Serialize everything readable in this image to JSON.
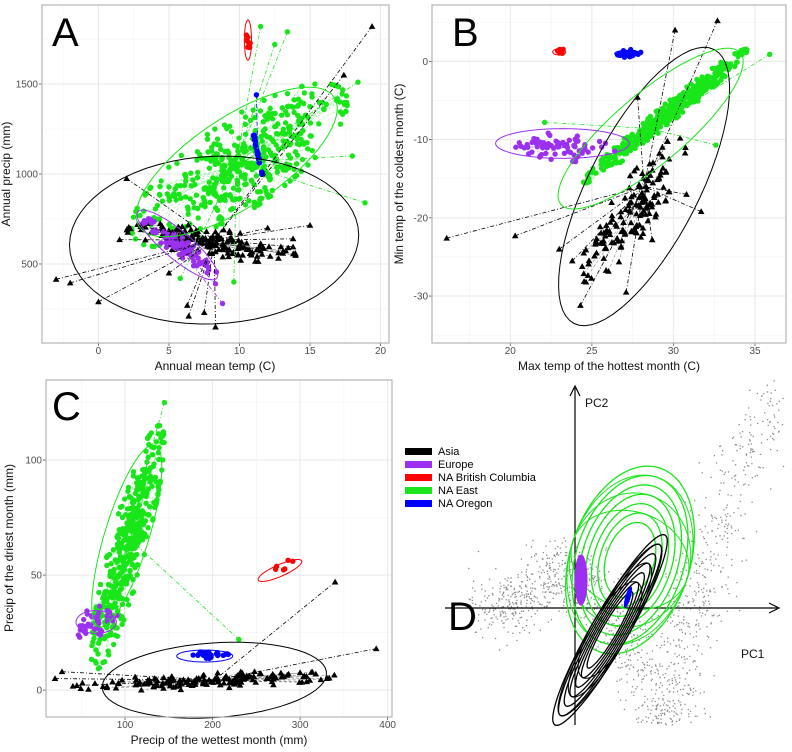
{
  "groups": {
    "asia": {
      "label": "Asia",
      "color": "#000000",
      "shape": "triangle"
    },
    "europe": {
      "label": "Europe",
      "color": "#9b30f0",
      "shape": "circle"
    },
    "bc": {
      "label": "NA British Columbia",
      "color": "#ff0000",
      "shape": "circle"
    },
    "east": {
      "label": "NA East",
      "color": "#19e619",
      "shape": "circle"
    },
    "oregon": {
      "label": "NA Oregon",
      "color": "#0000ff",
      "shape": "circle"
    }
  },
  "legend_order": [
    "asia",
    "europe",
    "bc",
    "east",
    "oregon"
  ],
  "chart_data": [
    {
      "panel": "A",
      "type": "scatter",
      "xlabel": "Annual mean temp (C)",
      "ylabel": "Annual precip (mm)",
      "xlim": [
        -4,
        20.6
      ],
      "ylim": [
        61,
        1939
      ],
      "xticks": [
        0,
        5,
        10,
        15,
        20
      ],
      "yticks": [
        500,
        1000,
        1500
      ],
      "grid": true,
      "clouds": [
        {
          "group": "east",
          "center": [
            10,
            1050
          ],
          "a1": [
            16.5,
            1400
          ],
          "a2": [
            11.4,
            870
          ],
          "n": 450
        },
        {
          "group": "asia",
          "center": [
            8,
            620
          ],
          "a1": [
            13.2,
            560
          ],
          "a2": [
            8,
            690
          ],
          "n": 180
        },
        {
          "group": "europe",
          "center": [
            5.7,
            600
          ],
          "a1": [
            8,
            470
          ],
          "a2": [
            5.9,
            640
          ],
          "n": 90
        },
        {
          "group": "bc",
          "center": [
            10.6,
            1740
          ],
          "a1": [
            10.6,
            1790
          ],
          "a2": [
            10.75,
            1740
          ],
          "n": 8
        },
        {
          "group": "oregon",
          "center": [
            11.3,
            1110
          ],
          "a1": [
            11.6,
            1000
          ],
          "a2": [
            11.35,
            1110
          ],
          "n": 30
        }
      ],
      "ellipses": [
        {
          "group": "asia",
          "center": [
            8.2,
            633
          ],
          "a1": [
            18.4,
            706
          ],
          "a2": [
            7.2,
            1094
          ]
        },
        {
          "group": "east",
          "center": [
            9.8,
            1067
          ],
          "a1": [
            16.7,
            1428
          ],
          "a2": [
            11.6,
            861
          ]
        },
        {
          "group": "europe",
          "center": [
            5.6,
            606
          ],
          "a1": [
            8.4,
            422
          ],
          "a2": [
            6.2,
            667
          ]
        },
        {
          "group": "bc",
          "center": [
            10.6,
            1744
          ],
          "a1": [
            10.6,
            1856
          ],
          "a2": [
            10.85,
            1744
          ]
        }
      ],
      "outliers": [
        {
          "group": "asia",
          "points": [
            [
              -3,
              415
            ],
            [
              -2,
              395
            ],
            [
              0,
              290
            ],
            [
              2,
              975
            ],
            [
              19.4,
              1820
            ],
            [
              17.4,
              1550
            ],
            [
              15,
              715
            ],
            [
              8.3,
              150
            ],
            [
              6.4,
              210
            ],
            [
              7.5,
              230
            ],
            [
              6.3,
              270
            ],
            [
              5,
              450
            ],
            [
              13.8,
              640
            ],
            [
              13.8,
              595
            ],
            [
              1.5,
              635
            ],
            [
              3,
              710
            ],
            [
              12,
              700
            ]
          ]
        },
        {
          "group": "east",
          "points": [
            [
              11.5,
              1820
            ],
            [
              13.4,
              1790
            ],
            [
              12.5,
              1720
            ],
            [
              18.4,
              1510
            ],
            [
              18.9,
              840
            ],
            [
              18,
              1100
            ],
            [
              5.8,
              420
            ],
            [
              9.6,
              400
            ]
          ]
        },
        {
          "group": "europe",
          "points": [
            [
              8.8,
              280
            ],
            [
              8.3,
              390
            ]
          ]
        },
        {
          "group": "oregon",
          "points": [
            [
              11.2,
              1440
            ]
          ]
        }
      ]
    },
    {
      "panel": "B",
      "type": "scatter",
      "xlabel": "Max temp of the hottest month (C)",
      "ylabel": "Min temp of the coldest month (C)",
      "xlim": [
        15.2,
        36.9
      ],
      "ylim": [
        -36,
        7.2
      ],
      "xticks": [
        20,
        25,
        30,
        35
      ],
      "yticks": [
        -30,
        -20,
        -10,
        0
      ],
      "grid": true,
      "clouds": [
        {
          "group": "east",
          "center": [
            29.5,
            -7
          ],
          "a1": [
            33.8,
            0
          ],
          "a2": [
            28.8,
            -9.5
          ],
          "n": 450
        },
        {
          "group": "asia",
          "center": [
            27.5,
            -19
          ],
          "a1": [
            30,
            -11
          ],
          "a2": [
            26.2,
            -18.5
          ],
          "n": 150
        },
        {
          "group": "europe",
          "center": [
            23.3,
            -11
          ],
          "a1": [
            26,
            -11.5
          ],
          "a2": [
            23.3,
            -9.5
          ],
          "n": 70
        },
        {
          "group": "bc",
          "center": [
            23,
            1.2
          ],
          "a1": [
            23.3,
            1.2
          ],
          "a2": [
            23,
            1.6
          ],
          "n": 8
        },
        {
          "group": "oregon",
          "center": [
            27.2,
            1.0
          ],
          "a1": [
            27.9,
            1.2
          ],
          "a2": [
            27.2,
            1.4
          ],
          "n": 25
        }
      ],
      "ellipses": [
        {
          "group": "asia",
          "center": [
            28.2,
            -16
          ],
          "a1": [
            32.5,
            1.5
          ],
          "a2": [
            31.2,
            -19.2
          ]
        },
        {
          "group": "east",
          "center": [
            28.6,
            -8.6
          ],
          "a1": [
            34.1,
            1.1
          ],
          "a2": [
            30,
            -12
          ]
        },
        {
          "group": "europe",
          "center": [
            23.2,
            -10.5
          ],
          "a1": [
            27.3,
            -10.5
          ],
          "a2": [
            23.2,
            -12.4
          ]
        },
        {
          "group": "bc",
          "center": [
            23,
            1.2
          ],
          "a1": [
            23.4,
            1.2
          ],
          "a2": [
            23,
            1.6
          ]
        },
        {
          "group": "oregon",
          "center": [
            27.2,
            1
          ],
          "a1": [
            28,
            1
          ],
          "a2": [
            27.2,
            1.4
          ]
        }
      ],
      "outliers": [
        {
          "group": "asia",
          "points": [
            [
              16.1,
              -22.6
            ],
            [
              20.3,
              -22.3
            ],
            [
              23,
              -24
            ],
            [
              24.3,
              -31.2
            ],
            [
              27.1,
              -29.5
            ],
            [
              28.7,
              -22.8
            ],
            [
              30.1,
              4
            ],
            [
              32.7,
              5.2
            ],
            [
              30.8,
              -17
            ],
            [
              31.7,
              -19.2
            ],
            [
              23.8,
              -25.5
            ],
            [
              27.8,
              -4.6
            ]
          ]
        },
        {
          "group": "east",
          "points": [
            [
              35.9,
              0.9
            ],
            [
              22.1,
              -7.8
            ],
            [
              32.6,
              -10.7
            ]
          ]
        }
      ]
    },
    {
      "panel": "C",
      "type": "scatter",
      "xlabel": "Precip of the wettest month (mm)",
      "ylabel": "Precip of the driest month (mm)",
      "xlim": [
        9.7,
        405
      ],
      "ylim": [
        -11.7,
        134.8
      ],
      "xticks": [
        100,
        200,
        300,
        400
      ],
      "yticks": [
        0,
        50,
        100
      ],
      "grid": true,
      "clouds": [
        {
          "group": "east",
          "center": [
            103,
            62
          ],
          "a1": [
            135,
            108
          ],
          "a2": [
            120,
            60
          ],
          "n": 420
        },
        {
          "group": "asia",
          "center": [
            190,
            4
          ],
          "a1": [
            320,
            6
          ],
          "a2": [
            190,
            7
          ],
          "n": 150
        },
        {
          "group": "europe",
          "center": [
            67,
            30
          ],
          "a1": [
            88,
            33
          ],
          "a2": [
            67,
            36
          ],
          "n": 40
        },
        {
          "group": "bc",
          "center": [
            277,
            53
          ],
          "a1": [
            290,
            56
          ],
          "a2": [
            277,
            54.5
          ],
          "n": 6
        },
        {
          "group": "oregon",
          "center": [
            195,
            15.5
          ],
          "a1": [
            215,
            15.5
          ],
          "a2": [
            195,
            17
          ],
          "n": 25
        }
      ],
      "ellipses": [
        {
          "group": "asia",
          "center": [
            202,
            4.3
          ],
          "a1": [
            330,
            8
          ],
          "a2": [
            196,
            20.4
          ]
        },
        {
          "group": "east",
          "center": [
            102,
            67
          ],
          "a1": [
            134,
            106.5
          ],
          "a2": [
            126,
            64
          ]
        },
        {
          "group": "europe",
          "center": [
            67,
            29.6
          ],
          "a1": [
            90,
            29.6
          ],
          "a2": [
            67,
            34.6
          ]
        },
        {
          "group": "bc",
          "center": [
            277,
            52
          ],
          "a1": [
            302,
            56
          ],
          "a2": [
            276,
            54.6
          ]
        },
        {
          "group": "oregon",
          "center": [
            191,
            14.8
          ],
          "a1": [
            223,
            14.8
          ],
          "a2": [
            191,
            17.4
          ]
        }
      ],
      "outliers": [
        {
          "group": "asia",
          "points": [
            [
              340,
              47
            ],
            [
              387,
              18
            ],
            [
              20,
              5
            ],
            [
              28,
              8
            ],
            [
              45,
              2
            ]
          ]
        },
        {
          "group": "east",
          "points": [
            [
              145,
              125
            ],
            [
              230,
              22
            ]
          ]
        }
      ]
    },
    {
      "panel": "D",
      "type": "scatter",
      "xlabel": "PC1",
      "ylabel": "PC2",
      "xlim": [
        -2.2,
        4.2
      ],
      "ylim": [
        -2.34,
        4.56
      ],
      "grid": false,
      "background_color": "#8c8c8c",
      "background_path": [
        [
          -2.0,
          0.0
        ],
        [
          -1.3,
          0.0
        ],
        [
          -0.8,
          0.4
        ],
        [
          -0.3,
          0.9
        ],
        [
          0.3,
          0.3
        ],
        [
          1.0,
          -0.5
        ],
        [
          1.5,
          -1.8
        ],
        [
          2.0,
          -2.3
        ],
        [
          2.2,
          -0.5
        ],
        [
          2.5,
          0.5
        ],
        [
          3.2,
          2.5
        ],
        [
          4.1,
          4.4
        ]
      ],
      "ellipses": [
        {
          "group": "east",
          "center": [
            1.1,
            0.96
          ],
          "a1": [
            1.7,
            2.8
          ],
          "a2": [
            2.24,
            0.58
          ],
          "mesh": true
        },
        {
          "group": "asia",
          "center": [
            0.7,
            -0.44
          ],
          "a1": [
            1.8,
            1.46
          ],
          "a2": [
            1.02,
            -0.62
          ],
          "mesh": true
        },
        {
          "group": "europe",
          "center": [
            0.12,
            0.56
          ],
          "a1": [
            0.12,
            1.06
          ],
          "a2": [
            0.24,
            0.56
          ],
          "fill": true
        },
        {
          "group": "oregon",
          "center": [
            1.06,
            0.22
          ],
          "a1": [
            1.12,
            0.42
          ],
          "a2": [
            1.1,
            0.2
          ],
          "fill": true
        }
      ]
    }
  ]
}
